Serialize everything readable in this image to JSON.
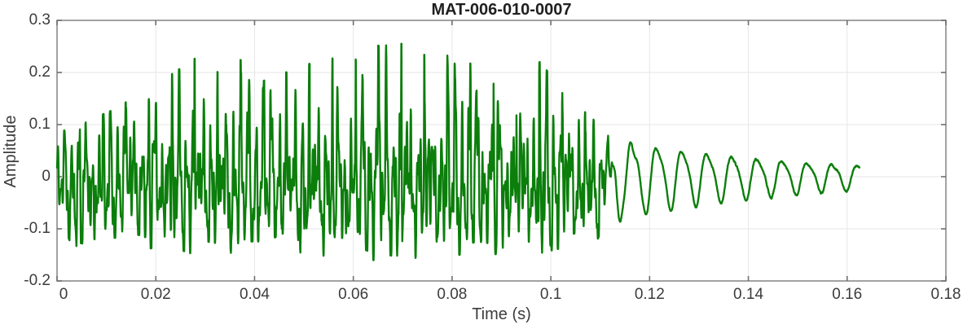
{
  "window": {
    "background": "#ffffff"
  },
  "chart_data": {
    "type": "line",
    "title": "MAT-006-010-0007",
    "xlabel": "Time (s)",
    "ylabel": "Amplitude",
    "xlim": [
      0,
      0.18
    ],
    "ylim": [
      -0.2,
      0.3
    ],
    "xticks": [
      0,
      0.02,
      0.04,
      0.06,
      0.08,
      0.1,
      0.12,
      0.14,
      0.16,
      0.18
    ],
    "xtick_labels": [
      "0",
      "0.02",
      "0.04",
      "0.06",
      "0.08",
      "0.1",
      "0.12",
      "0.14",
      "0.16",
      "0.18"
    ],
    "yticks": [
      -0.2,
      -0.1,
      0,
      0.1,
      0.2,
      0.3
    ],
    "ytick_labels": [
      "-0.2",
      "-0.1",
      "0",
      "0.1",
      "0.2",
      "0.3"
    ],
    "grid": true,
    "legend": "none",
    "line_color": "#0b7e0b",
    "line_width": 2.4,
    "series": [
      {
        "name": "MAT-006-010-0007",
        "kind": "acoustic-waveform",
        "t_start": 0,
        "t_end": 0.1625,
        "sample_dt": 4e-05,
        "noise_seed": 7,
        "noise_level": 0.22,
        "voiced_segment": {
          "t_end": 0.1135,
          "f0_hz": 215,
          "spike_ramp_s": 0.015,
          "spikes": [
            [
              0.0,
              0.016,
              1.0
            ],
            [
              0.32,
              0.05,
              0.42
            ],
            [
              0.1,
              0.035,
              -0.62
            ],
            [
              0.5,
              0.08,
              -0.5
            ],
            [
              0.78,
              0.06,
              -0.3
            ]
          ],
          "bands": [
            [
              3.3,
              0.4
            ],
            [
              6.9,
              0.26
            ],
            [
              11.7,
              0.18
            ]
          ],
          "envelope_t_max_min": [
            [
              0.0,
              0.085,
              -0.07
            ],
            [
              0.003,
              0.105,
              -0.15
            ],
            [
              0.006,
              0.13,
              -0.155
            ],
            [
              0.01,
              0.14,
              -0.13
            ],
            [
              0.014,
              0.165,
              -0.125
            ],
            [
              0.018,
              0.175,
              -0.14
            ],
            [
              0.022,
              0.195,
              -0.13
            ],
            [
              0.028,
              0.235,
              -0.15
            ],
            [
              0.033,
              0.22,
              -0.16
            ],
            [
              0.037,
              0.245,
              -0.15
            ],
            [
              0.041,
              0.205,
              -0.15
            ],
            [
              0.046,
              0.228,
              -0.14
            ],
            [
              0.051,
              0.222,
              -0.16
            ],
            [
              0.056,
              0.212,
              -0.15
            ],
            [
              0.061,
              0.225,
              -0.15
            ],
            [
              0.065,
              0.25,
              -0.16
            ],
            [
              0.07,
              0.255,
              -0.168
            ],
            [
              0.075,
              0.215,
              -0.15
            ],
            [
              0.08,
              0.238,
              -0.158
            ],
            [
              0.085,
              0.22,
              -0.14
            ],
            [
              0.09,
              0.205,
              -0.148
            ],
            [
              0.094,
              0.212,
              -0.13
            ],
            [
              0.098,
              0.24,
              -0.16
            ],
            [
              0.102,
              0.175,
              -0.15
            ],
            [
              0.106,
              0.162,
              -0.13
            ],
            [
              0.109,
              0.12,
              -0.158
            ],
            [
              0.112,
              0.09,
              -0.09
            ],
            [
              0.1135,
              0.08,
              -0.08
            ]
          ]
        },
        "crossfade": {
          "t_start": 0.1095,
          "t_end": 0.1135
        },
        "tail_segment": {
          "t0": 0.112,
          "freq_hz": 197,
          "amp_start": 0.085,
          "decay_tau_s": 0.042,
          "harmonic2_ratio": 0.22,
          "phase_offset_rad": 2.2,
          "norm": 1.15
        },
        "transition_wiggle": {
          "t": 0.108,
          "freq_hz": 650,
          "amp": 0.035,
          "tau_s": 0.004
        }
      }
    ]
  },
  "style": {
    "axis_color": "#8a8a8a",
    "tick_color": "#6e6e6e",
    "grid_color": "#e6e6e6",
    "label_color": "#3c3c3c",
    "title_color": "#1f1f1f",
    "plot_bg": "#ffffff"
  }
}
